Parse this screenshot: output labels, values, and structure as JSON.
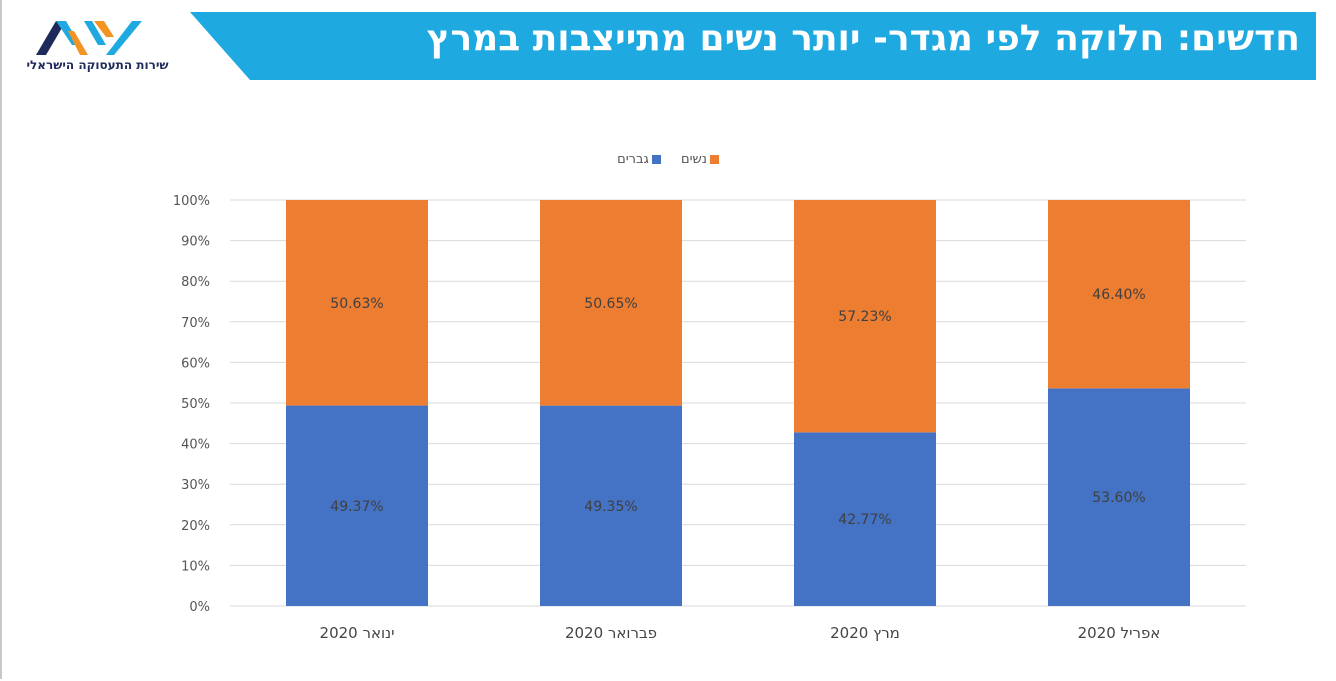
{
  "header": {
    "title": "חדשים: חלוקה לפי מגדר- יותר נשים מתייצבות במרץ",
    "logo_text": "שירות התעסוקה הישראלי",
    "banner_color": "#1ea9e1"
  },
  "chart_data": {
    "type": "bar",
    "stacked": true,
    "categories": [
      "ינואר 2020",
      "פברואר 2020",
      "מרץ 2020",
      "אפריל 2020"
    ],
    "series": [
      {
        "name": "גברים",
        "color": "#4472c4",
        "values": [
          49.37,
          49.35,
          42.77,
          53.6
        ],
        "labels": [
          "49.37%",
          "49.35%",
          "42.77%",
          "53.60%"
        ]
      },
      {
        "name": "נשים",
        "color": "#ed7d31",
        "values": [
          50.63,
          50.65,
          57.23,
          46.4
        ],
        "labels": [
          "50.63%",
          "50.65%",
          "57.23%",
          "46.40%"
        ]
      }
    ],
    "yticks": [
      "0%",
      "10%",
      "20%",
      "30%",
      "40%",
      "50%",
      "60%",
      "70%",
      "80%",
      "90%",
      "100%"
    ],
    "ylim": [
      0,
      100
    ],
    "grid": true,
    "legend": "top-center"
  }
}
